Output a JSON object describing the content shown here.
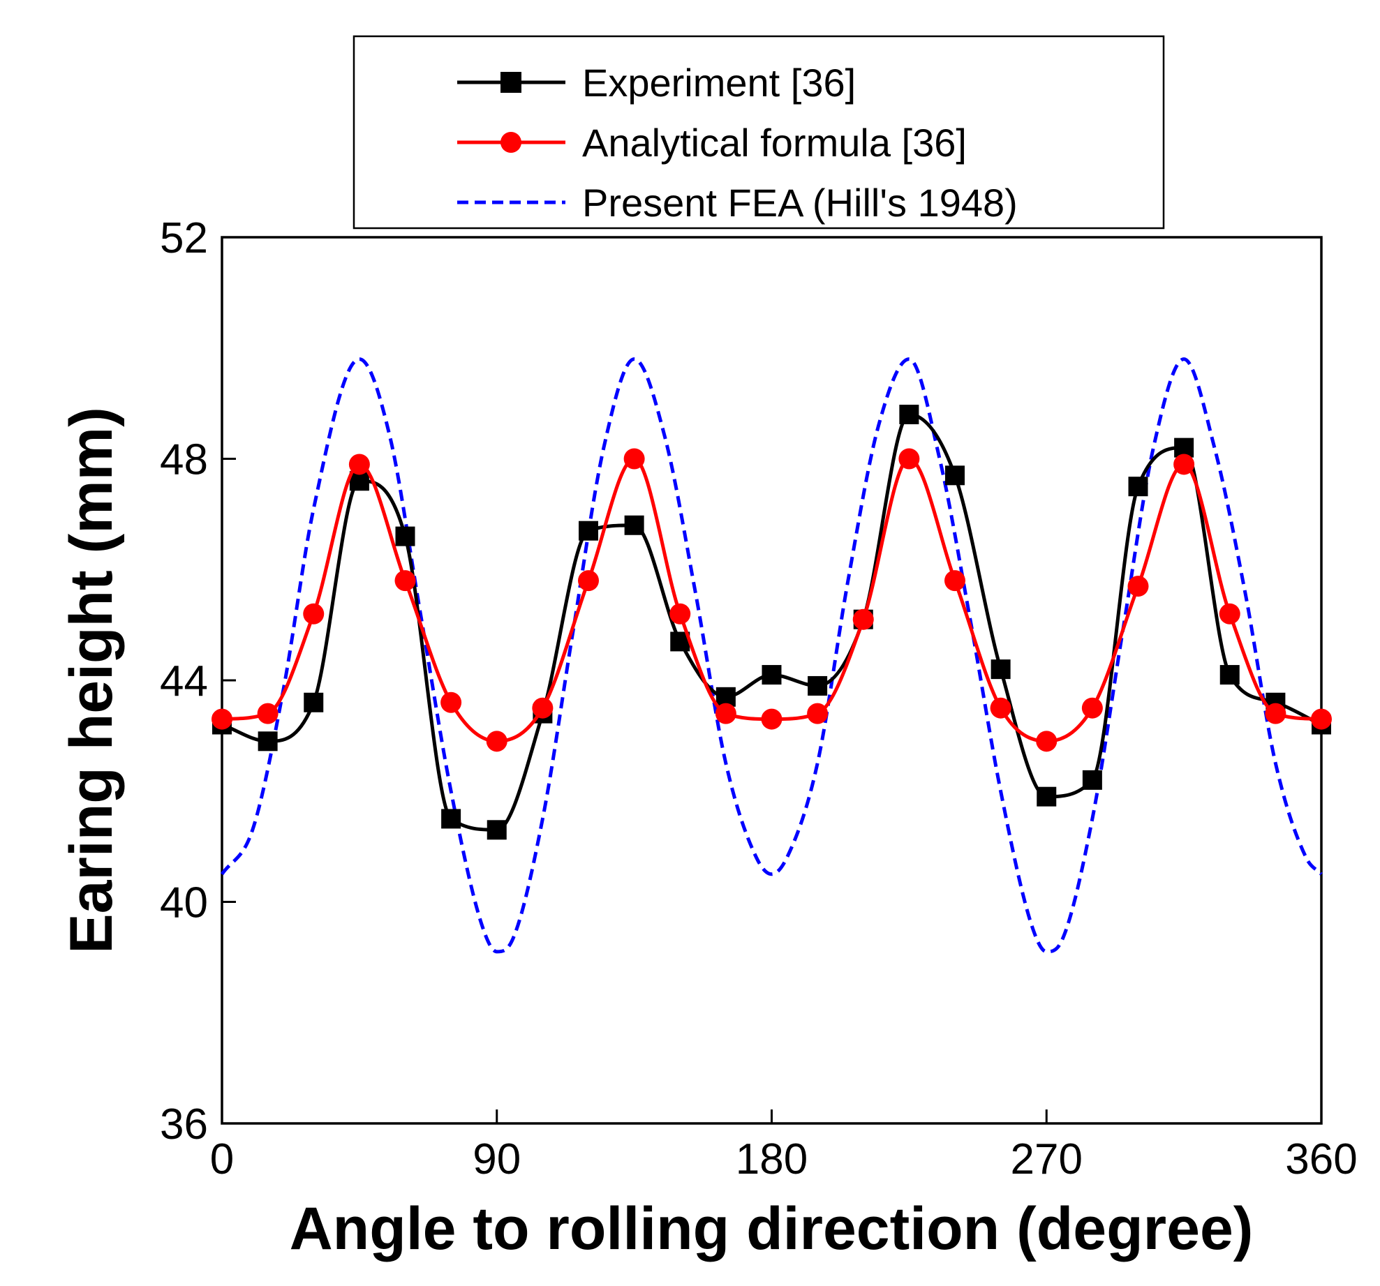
{
  "chart_data": {
    "type": "line",
    "title": "",
    "xlabel": "Angle to rolling direction (degree)",
    "ylabel": "Earing height (mm)",
    "xlim": [
      0,
      360
    ],
    "ylim": [
      36,
      52
    ],
    "xticks": [
      0,
      90,
      180,
      270,
      360
    ],
    "yticks": [
      36,
      40,
      44,
      48,
      52
    ],
    "grid": false,
    "legend_position": "top",
    "series": [
      {
        "name": "Experiment [36]",
        "color": "#000000",
        "marker": "square",
        "line_style": "solid",
        "x": [
          0,
          15,
          30,
          45,
          60,
          75,
          90,
          105,
          120,
          135,
          150,
          165,
          180,
          195,
          210,
          225,
          240,
          255,
          270,
          285,
          300,
          315,
          330,
          345,
          360
        ],
        "y": [
          43.2,
          42.9,
          43.6,
          47.6,
          46.6,
          41.5,
          41.3,
          43.4,
          46.7,
          46.8,
          44.7,
          43.7,
          44.1,
          43.9,
          45.1,
          48.8,
          47.7,
          44.2,
          41.9,
          42.2,
          47.5,
          48.2,
          44.1,
          43.6,
          43.2
        ]
      },
      {
        "name": "Analytical formula [36]",
        "color": "#ff0000",
        "marker": "circle",
        "line_style": "solid",
        "x": [
          0,
          15,
          30,
          45,
          60,
          75,
          90,
          105,
          120,
          135,
          150,
          165,
          180,
          195,
          210,
          225,
          240,
          255,
          270,
          285,
          300,
          315,
          330,
          345,
          360
        ],
        "y": [
          43.3,
          43.4,
          45.2,
          47.9,
          45.8,
          43.6,
          42.9,
          43.5,
          45.8,
          48.0,
          45.2,
          43.4,
          43.3,
          43.4,
          45.1,
          48.0,
          45.8,
          43.5,
          42.9,
          43.5,
          45.7,
          47.9,
          45.2,
          43.4,
          43.3
        ]
      },
      {
        "name": "Present FEA (Hill's 1948)",
        "color": "#0000ff",
        "marker": "none",
        "line_style": "dashed",
        "x": [
          0,
          10,
          20,
          30,
          45,
          55,
          65,
          75,
          85,
          90,
          95,
          105,
          115,
          125,
          135,
          145,
          155,
          165,
          175,
          180,
          185,
          195,
          205,
          215,
          225,
          235,
          245,
          255,
          265,
          270,
          275,
          285,
          295,
          305,
          315,
          325,
          335,
          345,
          355,
          360
        ],
        "y": [
          40.5,
          41.3,
          43.8,
          47.1,
          49.8,
          48.4,
          45.2,
          42.0,
          39.6,
          39.1,
          39.3,
          41.5,
          44.9,
          48.2,
          49.8,
          48.4,
          45.6,
          42.5,
          40.8,
          40.5,
          40.8,
          42.5,
          45.8,
          48.6,
          49.8,
          48.0,
          45.1,
          42.0,
          39.6,
          39.1,
          39.3,
          41.5,
          44.9,
          48.2,
          49.8,
          48.2,
          45.6,
          42.5,
          40.8,
          40.5
        ]
      }
    ]
  }
}
